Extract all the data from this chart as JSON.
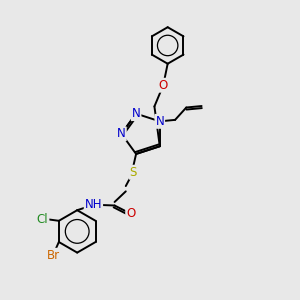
{
  "background_color": "#e8e8e8",
  "atom_colors": {
    "C": "#000000",
    "N": "#0000cc",
    "O": "#cc0000",
    "S": "#aaaa00",
    "Cl": "#228B22",
    "Br": "#cc6600",
    "H": "#000000"
  },
  "lw": 1.4,
  "fs": 8.5,
  "xlim": [
    0,
    10
  ],
  "ylim": [
    0,
    10
  ],
  "fig_w": 3.0,
  "fig_h": 3.0,
  "dpi": 100
}
